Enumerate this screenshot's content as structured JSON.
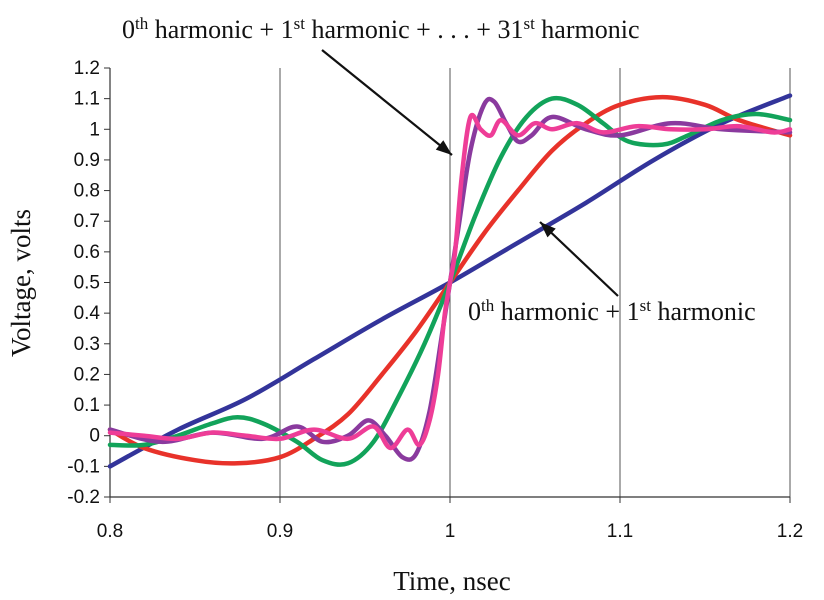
{
  "chart_data": {
    "type": "line",
    "xlabel": "Time, nsec",
    "ylabel": "Voltage, volts",
    "xlim": [
      0.8,
      1.2
    ],
    "ylim": [
      -0.2,
      1.2
    ],
    "x_ticks": [
      "0.8",
      "0.9",
      "1",
      "1.1",
      "1.2"
    ],
    "y_ticks": [
      "-0.2",
      "-0.1",
      "0",
      "0.1",
      "0.2",
      "0.3",
      "0.4",
      "0.5",
      "0.6",
      "0.7",
      "0.8",
      "0.9",
      "1",
      "1.1",
      "1.2"
    ],
    "grid": "vertical",
    "annotations": [
      {
        "base": "0",
        "sup": "th",
        "mid": " harmonic + 1",
        "sup2": "st",
        "rest": " harmonic + . . . + 31",
        "sup3": "st",
        "tail": " harmonic"
      },
      {
        "base": "0",
        "sup": "th",
        "mid": " harmonic + 1",
        "sup2": "st",
        "tail": " harmonic"
      }
    ],
    "series": [
      {
        "color": "#33349a",
        "x": [
          0.8,
          0.84,
          0.88,
          0.92,
          0.96,
          1.0,
          1.04,
          1.08,
          1.12,
          1.16,
          1.2
        ],
        "y": [
          -0.1,
          0.02,
          0.12,
          0.25,
          0.38,
          0.5,
          0.63,
          0.76,
          0.9,
          1.02,
          1.11
        ]
      },
      {
        "color": "#e8322a",
        "x": [
          0.8,
          0.82,
          0.85,
          0.875,
          0.9,
          0.92,
          0.94,
          0.96,
          0.98,
          1.0,
          1.02,
          1.04,
          1.06,
          1.08,
          1.1,
          1.125,
          1.15,
          1.17,
          1.2
        ],
        "y": [
          0.02,
          -0.04,
          -0.08,
          -0.09,
          -0.07,
          -0.01,
          0.07,
          0.2,
          0.34,
          0.5,
          0.66,
          0.8,
          0.93,
          1.02,
          1.08,
          1.105,
          1.08,
          1.03,
          0.98
        ]
      },
      {
        "color": "#12a35a",
        "x": [
          0.8,
          0.82,
          0.84,
          0.86,
          0.875,
          0.89,
          0.91,
          0.925,
          0.94,
          0.955,
          0.97,
          0.985,
          1.0,
          1.015,
          1.03,
          1.045,
          1.06,
          1.075,
          1.09,
          1.105,
          1.125,
          1.14,
          1.16,
          1.18,
          1.2
        ],
        "y": [
          -0.03,
          -0.03,
          0.0,
          0.04,
          0.06,
          0.04,
          -0.02,
          -0.08,
          -0.09,
          -0.02,
          0.13,
          0.3,
          0.5,
          0.72,
          0.91,
          1.04,
          1.1,
          1.08,
          1.02,
          0.96,
          0.95,
          0.98,
          1.03,
          1.05,
          1.03
        ]
      },
      {
        "color": "#8a3a9e",
        "x": [
          0.8,
          0.83,
          0.86,
          0.89,
          0.91,
          0.925,
          0.94,
          0.952,
          0.962,
          0.972,
          0.98,
          0.988,
          0.995,
          1.0,
          1.005,
          1.012,
          1.02,
          1.026,
          1.033,
          1.04,
          1.048,
          1.06,
          1.08,
          1.1,
          1.13,
          1.16,
          1.2
        ],
        "y": [
          0.02,
          -0.02,
          0.01,
          -0.01,
          0.03,
          -0.02,
          0.0,
          0.05,
          0.0,
          -0.07,
          -0.06,
          0.08,
          0.32,
          0.5,
          0.68,
          0.93,
          1.08,
          1.09,
          1.02,
          0.96,
          0.98,
          1.04,
          1.0,
          0.98,
          1.02,
          1.0,
          0.99
        ]
      },
      {
        "color": "#ee3d97",
        "x": [
          0.8,
          0.82,
          0.84,
          0.86,
          0.88,
          0.9,
          0.92,
          0.94,
          0.955,
          0.965,
          0.975,
          0.982,
          0.988,
          0.993,
          0.997,
          1.0,
          1.003,
          1.007,
          1.012,
          1.018,
          1.024,
          1.03,
          1.04,
          1.05,
          1.06,
          1.075,
          1.09,
          1.11,
          1.13,
          1.15,
          1.17,
          1.19,
          1.2
        ],
        "y": [
          0.01,
          0.0,
          -0.01,
          0.01,
          0.0,
          -0.01,
          0.02,
          -0.01,
          0.03,
          -0.04,
          0.02,
          -0.03,
          0.05,
          0.2,
          0.4,
          0.5,
          0.6,
          0.85,
          1.04,
          1.0,
          0.98,
          1.03,
          0.98,
          1.02,
          1.0,
          1.02,
          0.99,
          1.01,
          1.0,
          1.0,
          1.01,
          0.99,
          1.0
        ]
      }
    ]
  }
}
